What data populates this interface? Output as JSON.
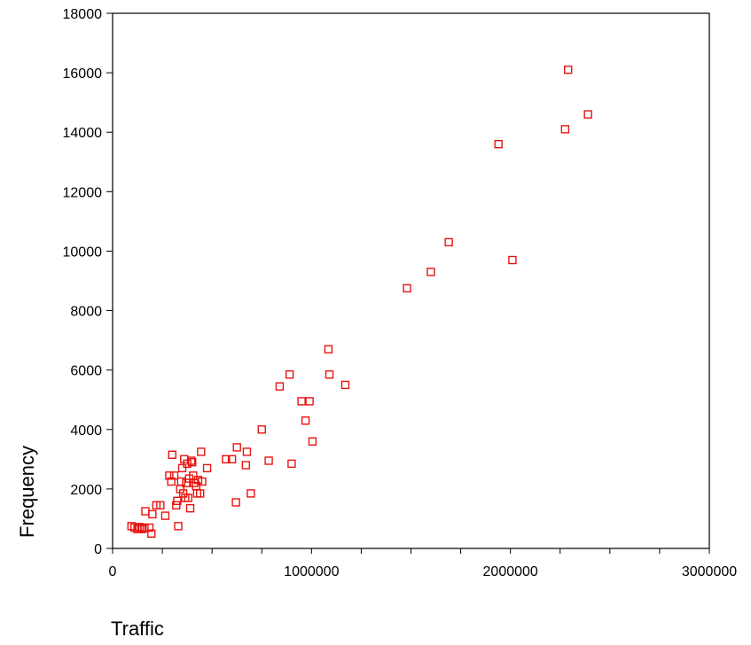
{
  "chart_data": {
    "type": "scatter",
    "title": "",
    "xlabel": "Traffic",
    "ylabel": "Frequency",
    "xlim": [
      0,
      3000000
    ],
    "ylim": [
      0,
      18000
    ],
    "x_ticks": [
      0,
      1000000,
      2000000,
      3000000
    ],
    "x_tick_labels": [
      "0",
      "1000000",
      "2000000",
      "3000000"
    ],
    "y_ticks": [
      0,
      2000,
      4000,
      6000,
      8000,
      10000,
      12000,
      14000,
      16000,
      18000
    ],
    "y_tick_labels": [
      "0",
      "2000",
      "4000",
      "6000",
      "8000",
      "10000",
      "12000",
      "14000",
      "16000",
      "18000"
    ],
    "grid": false,
    "legend": "none",
    "marker": "hollow-square",
    "marker_color": "#e8130f",
    "series": [
      {
        "points": [
          [
            95000,
            750
          ],
          [
            110000,
            700
          ],
          [
            125000,
            650
          ],
          [
            135000,
            720
          ],
          [
            145000,
            650
          ],
          [
            150000,
            700
          ],
          [
            160000,
            680
          ],
          [
            165000,
            1250
          ],
          [
            185000,
            700
          ],
          [
            195000,
            500
          ],
          [
            200000,
            1150
          ],
          [
            220000,
            1450
          ],
          [
            240000,
            1450
          ],
          [
            265000,
            1100
          ],
          [
            285000,
            2450
          ],
          [
            295000,
            2250
          ],
          [
            300000,
            3150
          ],
          [
            310000,
            2450
          ],
          [
            320000,
            1450
          ],
          [
            325000,
            1600
          ],
          [
            330000,
            750
          ],
          [
            340000,
            2000
          ],
          [
            345000,
            2250
          ],
          [
            350000,
            2700
          ],
          [
            355000,
            1850
          ],
          [
            360000,
            3000
          ],
          [
            365000,
            1700
          ],
          [
            370000,
            2200
          ],
          [
            375000,
            2850
          ],
          [
            380000,
            1700
          ],
          [
            385000,
            2350
          ],
          [
            390000,
            1350
          ],
          [
            395000,
            2950
          ],
          [
            400000,
            2900
          ],
          [
            405000,
            2450
          ],
          [
            410000,
            2200
          ],
          [
            420000,
            2100
          ],
          [
            425000,
            1850
          ],
          [
            430000,
            2300
          ],
          [
            440000,
            1850
          ],
          [
            445000,
            3250
          ],
          [
            450000,
            2250
          ],
          [
            475000,
            2700
          ],
          [
            570000,
            3000
          ],
          [
            600000,
            3000
          ],
          [
            620000,
            1550
          ],
          [
            625000,
            3400
          ],
          [
            670000,
            2800
          ],
          [
            675000,
            3250
          ],
          [
            695000,
            1850
          ],
          [
            750000,
            4000
          ],
          [
            785000,
            2950
          ],
          [
            840000,
            5450
          ],
          [
            890000,
            5850
          ],
          [
            900000,
            2850
          ],
          [
            950000,
            4950
          ],
          [
            970000,
            4300
          ],
          [
            990000,
            4950
          ],
          [
            1005000,
            3600
          ],
          [
            1085000,
            6700
          ],
          [
            1090000,
            5850
          ],
          [
            1170000,
            5500
          ],
          [
            1480000,
            8750
          ],
          [
            1600000,
            9300
          ],
          [
            1690000,
            10300
          ],
          [
            1940000,
            13600
          ],
          [
            2010000,
            9700
          ],
          [
            2275000,
            14100
          ],
          [
            2290000,
            16100
          ],
          [
            2390000,
            14600
          ]
        ]
      }
    ]
  }
}
